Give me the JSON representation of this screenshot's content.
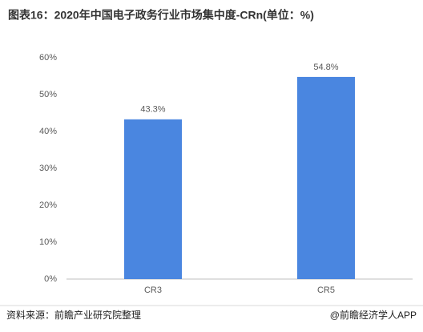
{
  "chart_data": {
    "type": "bar",
    "title": "图表16：2020年中国电子政务行业市场集中度-CRn(单位：%)",
    "categories": [
      "CR3",
      "CR5"
    ],
    "values": [
      43.3,
      54.8
    ],
    "value_labels": [
      "43.3%",
      "54.8%"
    ],
    "color": "#4a86e0",
    "ylim": [
      0,
      60
    ],
    "yticks": [
      {
        "value": 0,
        "label": "0%"
      },
      {
        "value": 10,
        "label": "10%"
      },
      {
        "value": 20,
        "label": "20%"
      },
      {
        "value": 30,
        "label": "30%"
      },
      {
        "value": 40,
        "label": "40%"
      },
      {
        "value": 50,
        "label": "50%"
      },
      {
        "value": 60,
        "label": "60%"
      }
    ],
    "grid": false
  },
  "footer": {
    "source": "资料来源：前瞻产业研究院整理",
    "credit": "@前瞻经济学人APP"
  }
}
